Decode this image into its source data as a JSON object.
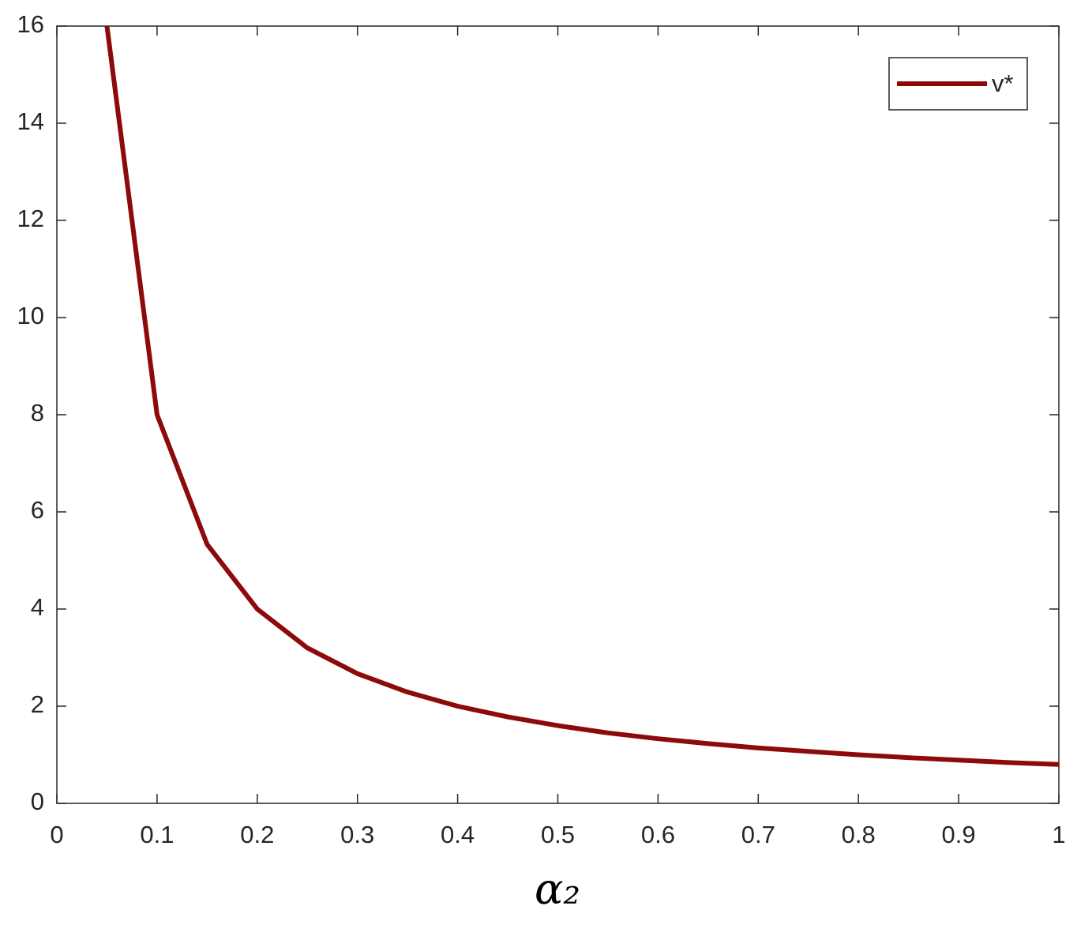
{
  "chart_data": {
    "type": "line",
    "x_label": "α₂",
    "x": [
      0.05,
      0.1,
      0.15,
      0.2,
      0.25,
      0.3,
      0.35,
      0.4,
      0.45,
      0.5,
      0.55,
      0.6,
      0.65,
      0.7,
      0.75,
      0.8,
      0.85,
      0.9,
      0.95,
      1
    ],
    "series": [
      {
        "name": "v*",
        "color": "#8c0a0a",
        "values": [
          16,
          8,
          5.33,
          4,
          3.2,
          2.67,
          2.29,
          2,
          1.78,
          1.6,
          1.45,
          1.33,
          1.23,
          1.14,
          1.07,
          1,
          0.94,
          0.89,
          0.84,
          0.8
        ]
      }
    ],
    "xlim": [
      0,
      1
    ],
    "xticks": [
      0,
      0.1,
      0.2,
      0.3,
      0.4,
      0.5,
      0.6,
      0.7,
      0.8,
      0.9,
      1
    ],
    "ylim": [
      0,
      16
    ],
    "yticks": [
      0,
      2,
      4,
      6,
      8,
      10,
      12,
      14,
      16
    ],
    "grid": false,
    "legend": "upper right"
  }
}
